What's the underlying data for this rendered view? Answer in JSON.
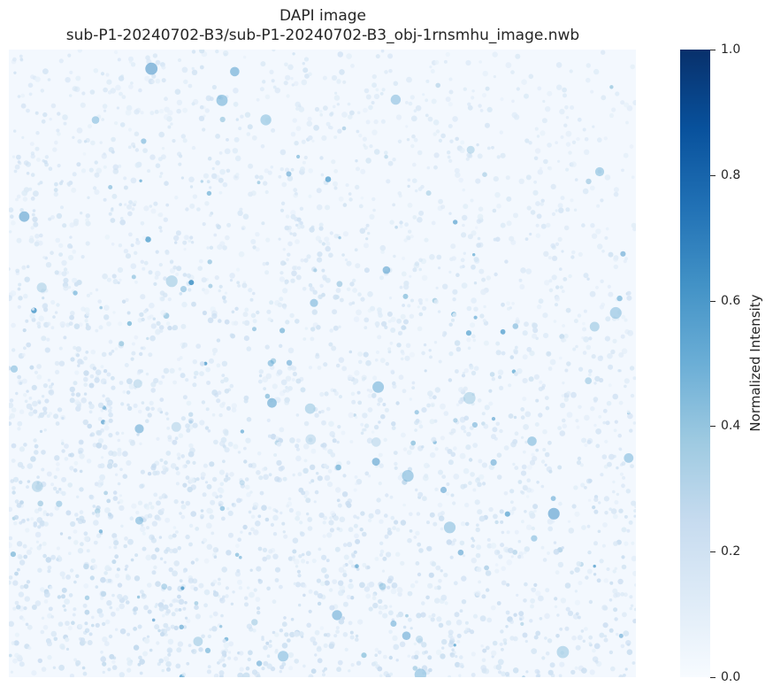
{
  "figure": {
    "title_line_1": "DAPI image",
    "title_line_2": "sub-P1-20240702-B3/sub-P1-20240702-B3_obj-1rnsmhu_image.nwb"
  },
  "image": {
    "description": "DAPI stained nuclei intensity map",
    "colormap": "Blues"
  },
  "colorbar": {
    "label": "Normalized Intensity",
    "range": [
      0.0,
      1.0
    ],
    "ticks": [
      "0.0",
      "0.2",
      "0.4",
      "0.6",
      "0.8",
      "1.0"
    ],
    "tick_values": [
      0.0,
      0.2,
      0.4,
      0.6,
      0.8,
      1.0
    ],
    "colors": [
      "#f7fbff",
      "#deebf7",
      "#c6dbef",
      "#9ecae1",
      "#6baed6",
      "#4292c6",
      "#2171b5",
      "#08519c",
      "#08306b"
    ]
  }
}
